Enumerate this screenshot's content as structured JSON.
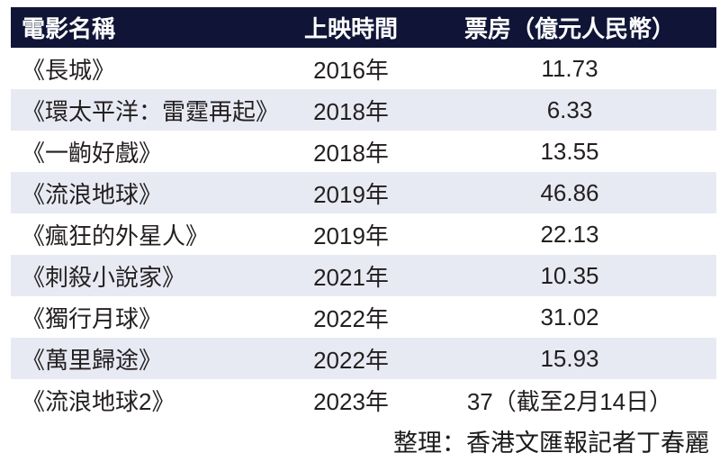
{
  "colors": {
    "header_bg": "#101537",
    "header_text": "#ffffff",
    "alt_row_bg": "#e8eaf3",
    "body_text": "#231f20"
  },
  "table": {
    "headers": [
      "電影名稱",
      "上映時間",
      "票房（億元人民幣）"
    ],
    "rows": [
      {
        "name": "《長城》",
        "year": "2016年",
        "box_office": "11.73"
      },
      {
        "name": "《環太平洋：雷霆再起》",
        "year": "2018年",
        "box_office": "6.33"
      },
      {
        "name": "《一齣好戲》",
        "year": "2018年",
        "box_office": "13.55"
      },
      {
        "name": "《流浪地球》",
        "year": "2019年",
        "box_office": "46.86"
      },
      {
        "name": "《瘋狂的外星人》",
        "year": "2019年",
        "box_office": "22.13"
      },
      {
        "name": "《刺殺小說家》",
        "year": "2021年",
        "box_office": "10.35"
      },
      {
        "name": "《獨行月球》",
        "year": "2022年",
        "box_office": "31.02"
      },
      {
        "name": "《萬里歸途》",
        "year": "2022年",
        "box_office": "15.93"
      },
      {
        "name": "《流浪地球2》",
        "year": "2023年",
        "box_office": "37（截至2月14日）"
      }
    ]
  },
  "footer": {
    "credit": "整理：香港文匯報記者丁春麗"
  },
  "chart_data": {
    "type": "table",
    "title": "",
    "columns": [
      "電影名稱",
      "上映時間",
      "票房（億元人民幣）"
    ],
    "rows": [
      [
        "《長城》",
        "2016年",
        11.73
      ],
      [
        "《環太平洋：雷霆再起》",
        "2018年",
        6.33
      ],
      [
        "《一齣好戲》",
        "2018年",
        13.55
      ],
      [
        "《流浪地球》",
        "2019年",
        46.86
      ],
      [
        "《瘋狂的外星人》",
        "2019年",
        22.13
      ],
      [
        "《刺殺小說家》",
        "2021年",
        10.35
      ],
      [
        "《獨行月球》",
        "2022年",
        31.02
      ],
      [
        "《萬里歸途》",
        "2022年",
        15.93
      ],
      [
        "《流浪地球2》",
        "2023年",
        "37（截至2月14日）"
      ]
    ],
    "notes": "row 9 box office value 37 is partial, as of 2月14日; source credit: 整理：香港文匯報記者丁春麗"
  }
}
